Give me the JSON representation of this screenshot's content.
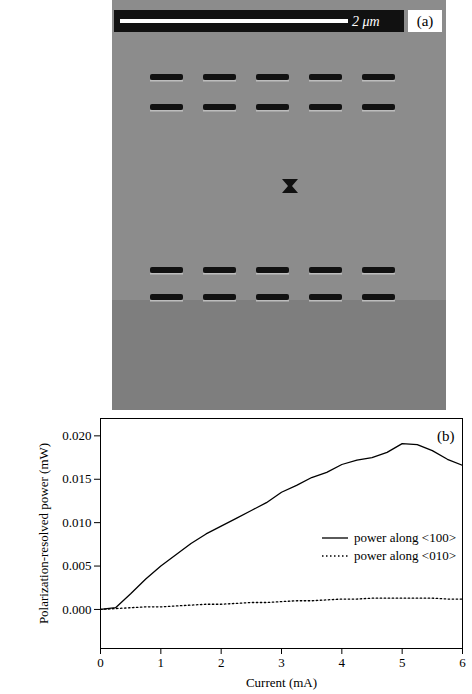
{
  "micrograph": {
    "label": "(a)",
    "scale_bar_label": "2 μm"
  },
  "chart_data": {
    "type": "line",
    "annotations": [
      "(b)"
    ],
    "x_label": "Current (mA)",
    "y_label": "Polarization-resolved power (mW)",
    "x": [
      0,
      0.25,
      0.5,
      0.75,
      1,
      1.25,
      1.5,
      1.75,
      2,
      2.25,
      2.5,
      2.75,
      3,
      3.25,
      3.5,
      3.75,
      4,
      4.25,
      4.5,
      4.75,
      5,
      5.25,
      5.5,
      5.75,
      6
    ],
    "series": [
      {
        "name": "power along <100>",
        "color": "#000000",
        "line_style": "solid",
        "values": [
          0,
          0.0002,
          0.0018,
          0.0035,
          0.005,
          0.0063,
          0.0076,
          0.0087,
          0.0096,
          0.0105,
          0.0114,
          0.0123,
          0.0135,
          0.0143,
          0.0152,
          0.0158,
          0.0167,
          0.0172,
          0.0175,
          0.0181,
          0.0191,
          0.019,
          0.0183,
          0.0173,
          0.0166
        ]
      },
      {
        "name": "power along <010>",
        "color": "#000000",
        "line_style": "dotted",
        "values": [
          0,
          0.0001,
          0.0002,
          0.0003,
          0.0003,
          0.0004,
          0.0005,
          0.0006,
          0.0006,
          0.0007,
          0.0008,
          0.0008,
          0.0009,
          0.001,
          0.001,
          0.0011,
          0.0012,
          0.0012,
          0.0013,
          0.0013,
          0.0013,
          0.0013,
          0.0013,
          0.0012,
          0.0012
        ]
      }
    ],
    "xlim": [
      0,
      6
    ],
    "xticks": [
      0,
      1,
      2,
      3,
      4,
      5,
      6
    ],
    "ylim": [
      -0.0045,
      0.022
    ],
    "yticks": [
      {
        "value": 0,
        "label": "0.000"
      },
      {
        "value": 0.005,
        "label": "0.005"
      },
      {
        "value": 0.01,
        "label": "0.010"
      },
      {
        "value": 0.015,
        "label": "0.015"
      },
      {
        "value": 0.02,
        "label": "0.020"
      }
    ],
    "grid": false,
    "legend": "lower right"
  }
}
